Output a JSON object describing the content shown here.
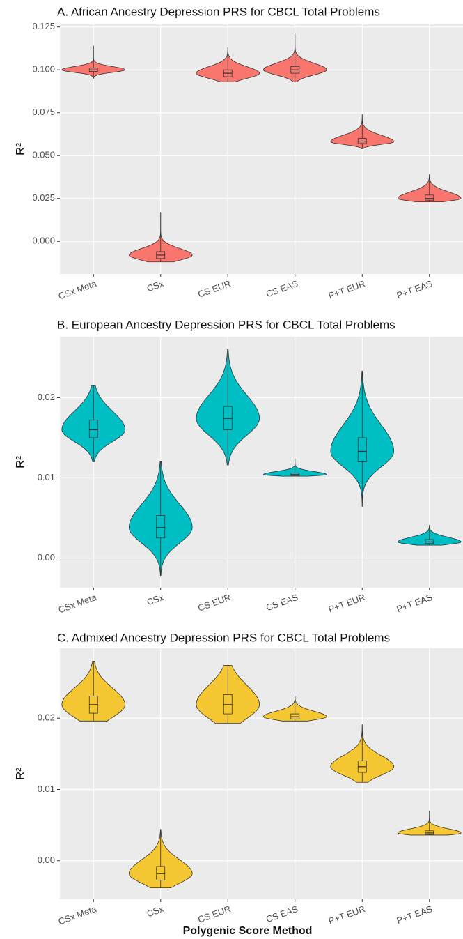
{
  "chart_data": [
    {
      "type": "violin",
      "title": "A. African Ancestry Depression PRS for CBCL Total Problems",
      "y_label": "R²",
      "color": "#F8766D",
      "categories": [
        "CSx Meta",
        "CSx",
        "CS EUR",
        "CS EAS",
        "P+T EUR",
        "P+T EAS"
      ],
      "min": [
        0.095,
        -0.012,
        0.093,
        0.093,
        0.054,
        0.023
      ],
      "q1": [
        0.099,
        -0.01,
        0.096,
        0.098,
        0.057,
        0.024
      ],
      "median": [
        0.1,
        -0.008,
        0.098,
        0.1,
        0.058,
        0.025
      ],
      "q3": [
        0.101,
        -0.006,
        0.1,
        0.102,
        0.06,
        0.027
      ],
      "max": [
        0.114,
        0.017,
        0.113,
        0.121,
        0.074,
        0.039
      ],
      "ylim": [
        -0.019,
        0.1265
      ],
      "yticks": [
        {
          "value": 0,
          "label": "0.000"
        },
        {
          "value": 0.025,
          "label": "0.025"
        },
        {
          "value": 0.05,
          "label": "0.050"
        },
        {
          "value": 0.075,
          "label": "0.075"
        },
        {
          "value": 0.1,
          "label": "0.100"
        },
        {
          "value": 0.125,
          "label": "0.125"
        }
      ],
      "grid": true
    },
    {
      "type": "violin",
      "title": "B. European Ancestry Depression PRS for CBCL Total Problems",
      "y_label": "R²",
      "color": "#00BFC4",
      "categories": [
        "CSx Meta",
        "CSx",
        "CS EUR",
        "CS EAS",
        "P+T EUR",
        "P+T EAS"
      ],
      "min": [
        0.012,
        -0.0022,
        0.0116,
        0.0102,
        0.0064,
        0.0016
      ],
      "q1": [
        0.015,
        0.0025,
        0.016,
        0.0103,
        0.012,
        0.0018
      ],
      "median": [
        0.016,
        0.0038,
        0.0174,
        0.0104,
        0.0133,
        0.002
      ],
      "q3": [
        0.0172,
        0.0053,
        0.0189,
        0.0106,
        0.015,
        0.0023
      ],
      "max": [
        0.0215,
        0.012,
        0.026,
        0.0124,
        0.0233,
        0.0041
      ],
      "ylim": [
        -0.0037,
        0.0276
      ],
      "yticks": [
        {
          "value": 0,
          "label": "0.00"
        },
        0.01,
        0.02
      ],
      "grid": true
    },
    {
      "type": "violin",
      "title": "C. Admixed Ancestry Depression PRS for CBCL Total Problems",
      "y_label": "R²",
      "x_label": "Polygenic Score Method",
      "color": "#F5C733",
      "categories": [
        "CSx Meta",
        "CSx",
        "CS EUR",
        "CS EAS",
        "P+T EUR",
        "P+T EAS"
      ],
      "min": [
        0.0196,
        -0.0038,
        0.0193,
        0.0196,
        0.011,
        0.0036
      ],
      "q1": [
        0.0207,
        -0.0027,
        0.0206,
        0.0199,
        0.0124,
        0.0037
      ],
      "median": [
        0.0219,
        -0.0018,
        0.0219,
        0.0202,
        0.0132,
        0.0039
      ],
      "q3": [
        0.0231,
        -0.0008,
        0.0233,
        0.0206,
        0.014,
        0.0042
      ],
      "max": [
        0.028,
        0.0044,
        0.0274,
        0.0231,
        0.0191,
        0.007
      ],
      "ylim": [
        -0.0054,
        0.0298
      ],
      "yticks": [
        {
          "value": 0,
          "label": "0.00"
        },
        0.01,
        0.02
      ],
      "grid": true
    }
  ]
}
